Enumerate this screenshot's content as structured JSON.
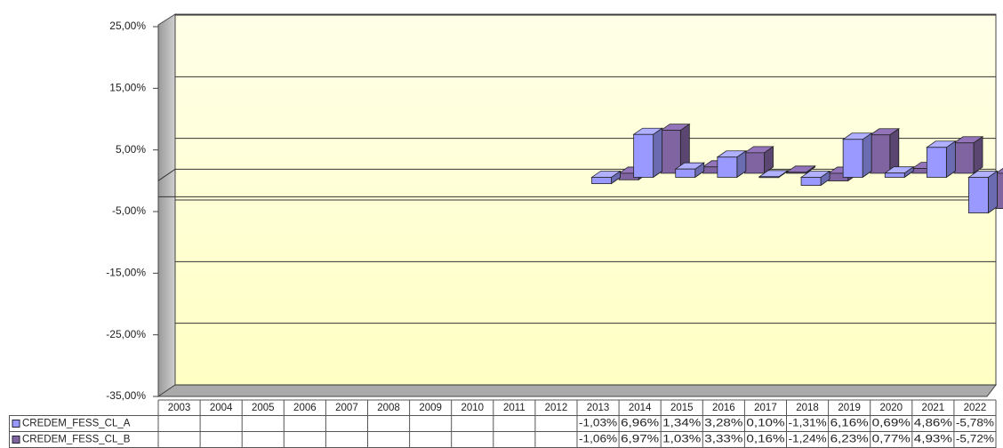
{
  "chart_data": {
    "type": "bar3d",
    "categories": [
      "2003",
      "2004",
      "2005",
      "2006",
      "2007",
      "2008",
      "2009",
      "2010",
      "2011",
      "2012",
      "2013",
      "2014",
      "2015",
      "2016",
      "2017",
      "2018",
      "2019",
      "2020",
      "2021",
      "2022"
    ],
    "series": [
      {
        "name": "CREDEM_FESS_CL_A",
        "color": "#9999ff",
        "values": [
          null,
          null,
          null,
          null,
          null,
          null,
          null,
          null,
          null,
          null,
          -1.03,
          6.96,
          1.34,
          3.28,
          0.1,
          -1.31,
          6.16,
          0.69,
          4.86,
          -5.78
        ],
        "value_labels": [
          null,
          null,
          null,
          null,
          null,
          null,
          null,
          null,
          null,
          null,
          "-1,03%",
          "6,96%",
          "1,34%",
          "3,28%",
          "0,10%",
          "-1,31%",
          "6,16%",
          "0,69%",
          "4,86%",
          "-5,78%"
        ]
      },
      {
        "name": "CREDEM_FESS_CL_B",
        "color": "#8064a2",
        "values": [
          null,
          null,
          null,
          null,
          null,
          null,
          null,
          null,
          null,
          null,
          -1.06,
          6.97,
          1.03,
          3.33,
          0.16,
          -1.24,
          6.23,
          0.77,
          4.93,
          -5.72
        ],
        "value_labels": [
          null,
          null,
          null,
          null,
          null,
          null,
          null,
          null,
          null,
          null,
          "-1,06%",
          "6,97%",
          "1,03%",
          "3,33%",
          "0,16%",
          "-1,24%",
          "6,23%",
          "0,77%",
          "4,93%",
          "-5,72%"
        ]
      }
    ],
    "ylim": [
      -35,
      25
    ],
    "yticks": [
      {
        "value": -35,
        "label": "-35,00%"
      },
      {
        "value": -25,
        "label": "-25,00%"
      },
      {
        "value": -15,
        "label": "-15,00%"
      },
      {
        "value": -5,
        "label": "-5,00%"
      },
      {
        "value": 5,
        "label": "5,00%"
      },
      {
        "value": 15,
        "label": "15,00%"
      },
      {
        "value": 25,
        "label": "25,00%"
      }
    ],
    "grid": true
  }
}
